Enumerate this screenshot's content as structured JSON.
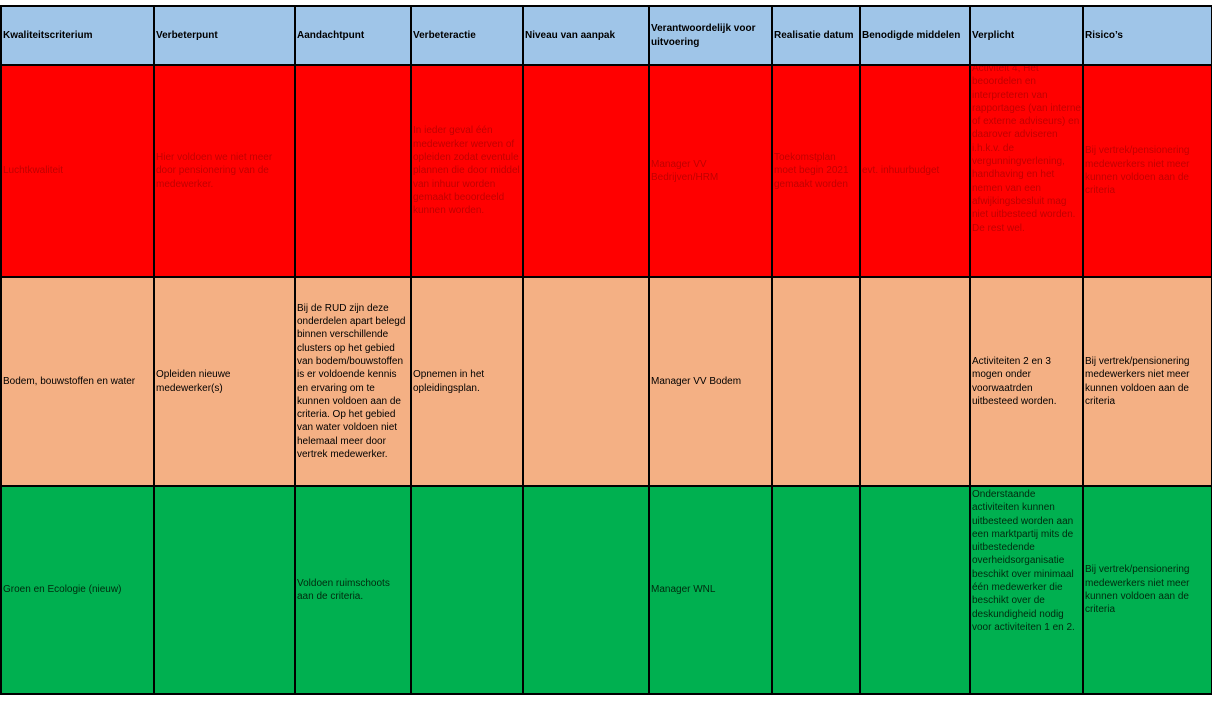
{
  "table": {
    "headers": [
      "Kwaliteitscriterium",
      "Verbeterpunt",
      "Aandachtpunt",
      "Verbeteractie",
      "Niveau van aanpak",
      "Verantwoordelijk voor uitvoering",
      "Realisatie datum",
      "Benodigde middelen",
      "Verplicht",
      "Risico’s"
    ],
    "rows": [
      {
        "criterium": "Luchtkwaliteit",
        "verbeterpunt": "Hier voldoen we niet meer door pensionering van de medewerker.",
        "aandachtpunt": "",
        "verbeteractie": "In ieder geval één medewerker werven of opleiden zodat eventule plannen die door middel van inhuur worden gemaakt beoordeeld kunnen worden.",
        "niveau": "",
        "verantwoordelijk": "Manager VV Bedrijven/HRM",
        "realisatie": "Toekomstplan moet begin 2021 gemaakt worden",
        "middelen": "evt. inhuurbudget",
        "verplicht": "Activiteit 4, Het beoordelen en interpreteren van rapportages (van interne of externe adviseurs) en daarover adviseren i.h.k.v. de vergunningverlening, handhaving en het nemen van een afwijkingsbesluit mag niet uitbesteed worden. De rest wel.",
        "risicos": "Bij vertrek/pensionering medewerkers niet meer kunnen voldoen aan de criteria",
        "bg": "#ff0000",
        "fg": "#c00000"
      },
      {
        "criterium": "Bodem, bouwstoffen en water",
        "verbeterpunt": "Opleiden nieuwe medewerker(s)",
        "aandachtpunt": "Bij de RUD zijn deze onderdelen apart belegd binnen verschillende clusters op het gebied van bodem/bouwstoffen is er voldoende kennis en ervaring om te kunnen voldoen aan de criteria. Op het gebied van water voldoen niet helemaal meer door vertrek medewerker.",
        "verbeteractie": "Opnemen in het opleidingsplan.",
        "niveau": "",
        "verantwoordelijk": "Manager VV Bodem",
        "realisatie": "",
        "middelen": "",
        "verplicht": "Activiteiten 2 en 3 mogen onder voorwaatrden uitbesteed worden.",
        "risicos": "Bij vertrek/pensionering medewerkers niet meer kunnen voldoen aan de criteria",
        "bg": "#f4b084",
        "fg": "#000000"
      },
      {
        "criterium": "Groen en Ecologie (nieuw)",
        "verbeterpunt": "",
        "aandachtpunt": "Voldoen ruimschoots aan de criteria.",
        "verbeteractie": "",
        "niveau": "",
        "verantwoordelijk": "Manager WNL",
        "realisatie": "",
        "middelen": "",
        "verplicht": "Onderstaande activiteiten kunnen uitbesteed worden aan een marktpartij mits de uitbestedende overheidsorganisatie beschikt over minimaal één medewerker die beschikt over de deskundigheid nodig voor activiteiten 1 en 2.",
        "risicos": "Bij vertrek/pensionering medewerkers niet meer kunnen voldoen aan de criteria",
        "bg": "#00b050",
        "fg": "#002a0e"
      }
    ]
  }
}
